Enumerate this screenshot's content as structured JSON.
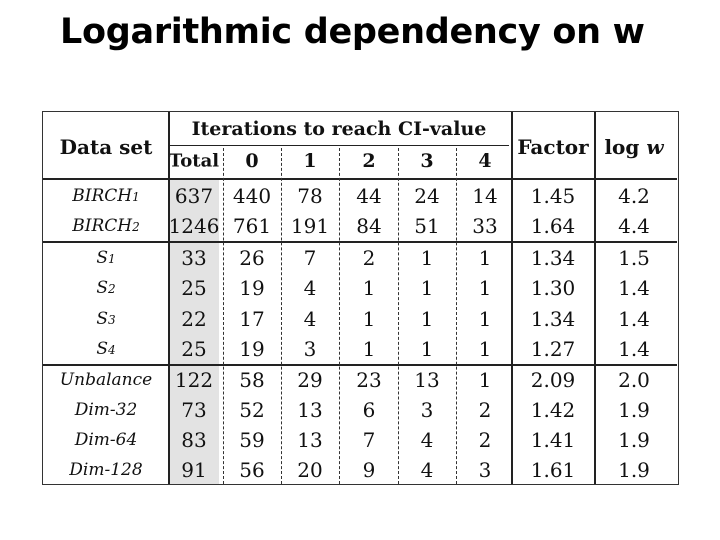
{
  "title": "Logarithmic dependency on w",
  "table": {
    "header_dataset": "Data set",
    "header_iterations": "Iterations to reach CI-value",
    "header_factor": "Factor",
    "header_log_prefix": "log ",
    "header_log_var": "w",
    "subheaders": [
      "Total",
      "0",
      "1",
      "2",
      "3",
      "4"
    ],
    "groups": [
      {
        "rows": [
          {
            "name": "BIRCH",
            "sub": "1",
            "total": "637",
            "it0": "440",
            "it1": "78",
            "it2": "44",
            "it3": "24",
            "it4": "14",
            "factor": "1.45",
            "logw": "4.2"
          },
          {
            "name": "BIRCH",
            "sub": "2",
            "total": "1246",
            "it0": "761",
            "it1": "191",
            "it2": "84",
            "it3": "51",
            "it4": "33",
            "factor": "1.64",
            "logw": "4.4"
          }
        ]
      },
      {
        "rows": [
          {
            "name": "S",
            "sub": "1",
            "total": "33",
            "it0": "26",
            "it1": "7",
            "it2": "2",
            "it3": "1",
            "it4": "1",
            "factor": "1.34",
            "logw": "1.5"
          },
          {
            "name": "S",
            "sub": "2",
            "total": "25",
            "it0": "19",
            "it1": "4",
            "it2": "1",
            "it3": "1",
            "it4": "1",
            "factor": "1.30",
            "logw": "1.4"
          },
          {
            "name": "S",
            "sub": "3",
            "total": "22",
            "it0": "17",
            "it1": "4",
            "it2": "1",
            "it3": "1",
            "it4": "1",
            "factor": "1.34",
            "logw": "1.4"
          },
          {
            "name": "S",
            "sub": "4",
            "total": "25",
            "it0": "19",
            "it1": "3",
            "it2": "1",
            "it3": "1",
            "it4": "1",
            "factor": "1.27",
            "logw": "1.4"
          }
        ]
      },
      {
        "rows": [
          {
            "name": "Unbalance",
            "sub": "",
            "total": "122",
            "it0": "58",
            "it1": "29",
            "it2": "23",
            "it3": "13",
            "it4": "1",
            "factor": "2.09",
            "logw": "2.0"
          },
          {
            "name": "Dim-32",
            "sub": "",
            "total": "73",
            "it0": "52",
            "it1": "13",
            "it2": "6",
            "it3": "3",
            "it4": "2",
            "factor": "1.42",
            "logw": "1.9"
          },
          {
            "name": "Dim-64",
            "sub": "",
            "total": "83",
            "it0": "59",
            "it1": "13",
            "it2": "7",
            "it3": "4",
            "it4": "2",
            "factor": "1.41",
            "logw": "1.9"
          },
          {
            "name": "Dim-128",
            "sub": "",
            "total": "91",
            "it0": "56",
            "it1": "20",
            "it2": "9",
            "it3": "4",
            "it4": "3",
            "factor": "1.61",
            "logw": "1.9"
          }
        ]
      }
    ]
  }
}
